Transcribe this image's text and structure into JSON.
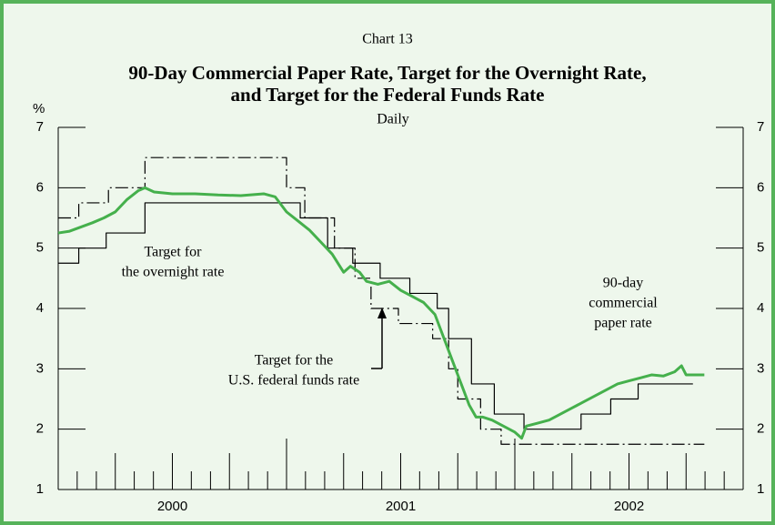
{
  "chart_data": {
    "type": "line",
    "kicker": "Chart 13",
    "title": [
      "90-Day Commercial Paper Rate, Target for the Overnight Rate,",
      "and Target for the Federal Funds Rate"
    ],
    "subtitle": "Daily",
    "ylabel": "%",
    "xlim": [
      2000,
      2003
    ],
    "ylim": [
      1,
      7
    ],
    "yticks": [
      1,
      2,
      3,
      4,
      5,
      6,
      7
    ],
    "xticks": [
      {
        "value": 2000.5,
        "label": "2000"
      },
      {
        "value": 2001.5,
        "label": "2001"
      },
      {
        "value": 2002.5,
        "label": "2002"
      }
    ],
    "minor_xticks": [
      2000.083,
      2000.167,
      2000.25,
      2000.333,
      2000.417,
      2000.5,
      2000.583,
      2000.667,
      2000.75,
      2000.833,
      2000.917,
      2001,
      2001.083,
      2001.167,
      2001.25,
      2001.333,
      2001.417,
      2001.5,
      2001.583,
      2001.667,
      2001.75,
      2001.833,
      2001.917,
      2002,
      2002.083,
      2002.167,
      2002.25,
      2002.333,
      2002.417,
      2002.5,
      2002.583,
      2002.667,
      2002.75,
      2002.833,
      2002.917
    ],
    "series": [
      {
        "name": [
          "Target for",
          "the overnight rate"
        ],
        "color": "#000000",
        "style": "solid",
        "x": [
          2000.0,
          2000.09,
          2000.09,
          2000.21,
          2000.21,
          2000.38,
          2000.38,
          2001.06,
          2001.06,
          2001.18,
          2001.18,
          2001.29,
          2001.29,
          2001.41,
          2001.41,
          2001.54,
          2001.54,
          2001.66,
          2001.66,
          2001.71,
          2001.71,
          2001.81,
          2001.81,
          2001.91,
          2001.91,
          2002.04,
          2002.04,
          2002.29,
          2002.29,
          2002.42,
          2002.42,
          2002.54,
          2002.54,
          2002.78
        ],
        "values": [
          4.75,
          4.75,
          5.0,
          5.0,
          5.25,
          5.25,
          5.75,
          5.75,
          5.5,
          5.5,
          5.0,
          5.0,
          4.75,
          4.75,
          4.5,
          4.5,
          4.25,
          4.25,
          4.0,
          4.0,
          3.5,
          3.5,
          2.75,
          2.75,
          2.25,
          2.25,
          2.0,
          2.0,
          2.25,
          2.25,
          2.5,
          2.5,
          2.75,
          2.75
        ]
      },
      {
        "name": [
          "Target for the",
          "U.S. federal funds rate"
        ],
        "color": "#000000",
        "style": "dashdot",
        "x": [
          2000.0,
          2000.09,
          2000.09,
          2000.22,
          2000.22,
          2000.38,
          2000.38,
          2001.0,
          2001.0,
          2001.08,
          2001.08,
          2001.21,
          2001.21,
          2001.3,
          2001.3,
          2001.37,
          2001.37,
          2001.49,
          2001.49,
          2001.64,
          2001.64,
          2001.71,
          2001.71,
          2001.75,
          2001.75,
          2001.85,
          2001.85,
          2001.94,
          2001.94,
          2002.83
        ],
        "values": [
          5.5,
          5.5,
          5.75,
          5.75,
          6.0,
          6.0,
          6.5,
          6.5,
          6.0,
          6.0,
          5.5,
          5.5,
          5.0,
          5.0,
          4.5,
          4.5,
          4.0,
          4.0,
          3.75,
          3.75,
          3.5,
          3.5,
          3.0,
          3.0,
          2.5,
          2.5,
          2.0,
          2.0,
          1.75,
          1.75
        ]
      },
      {
        "name": [
          "90-day",
          "commercial",
          "paper rate"
        ],
        "color": "#45b04c",
        "style": "thick",
        "x": [
          2000.0,
          2000.05,
          2000.1,
          2000.15,
          2000.2,
          2000.25,
          2000.3,
          2000.35,
          2000.38,
          2000.42,
          2000.5,
          2000.6,
          2000.7,
          2000.8,
          2000.9,
          2000.95,
          2001.0,
          2001.05,
          2001.1,
          2001.15,
          2001.2,
          2001.25,
          2001.28,
          2001.32,
          2001.35,
          2001.4,
          2001.45,
          2001.5,
          2001.55,
          2001.6,
          2001.65,
          2001.68,
          2001.72,
          2001.76,
          2001.8,
          2001.83,
          2001.86,
          2001.9,
          2001.95,
          2002.0,
          2002.03,
          2002.05,
          2002.1,
          2002.15,
          2002.2,
          2002.25,
          2002.3,
          2002.35,
          2002.4,
          2002.45,
          2002.5,
          2002.55,
          2002.6,
          2002.65,
          2002.7,
          2002.73,
          2002.75,
          2002.8,
          2002.83
        ],
        "values": [
          5.25,
          5.28,
          5.35,
          5.42,
          5.5,
          5.6,
          5.8,
          5.95,
          6.0,
          5.93,
          5.9,
          5.9,
          5.88,
          5.87,
          5.9,
          5.85,
          5.6,
          5.45,
          5.3,
          5.1,
          4.9,
          4.6,
          4.7,
          4.6,
          4.45,
          4.4,
          4.45,
          4.3,
          4.2,
          4.1,
          3.9,
          3.6,
          3.2,
          2.8,
          2.4,
          2.2,
          2.2,
          2.15,
          2.05,
          1.95,
          1.85,
          2.05,
          2.1,
          2.15,
          2.25,
          2.35,
          2.45,
          2.55,
          2.65,
          2.75,
          2.8,
          2.85,
          2.9,
          2.88,
          2.95,
          3.05,
          2.9,
          2.9,
          2.9
        ]
      }
    ]
  }
}
